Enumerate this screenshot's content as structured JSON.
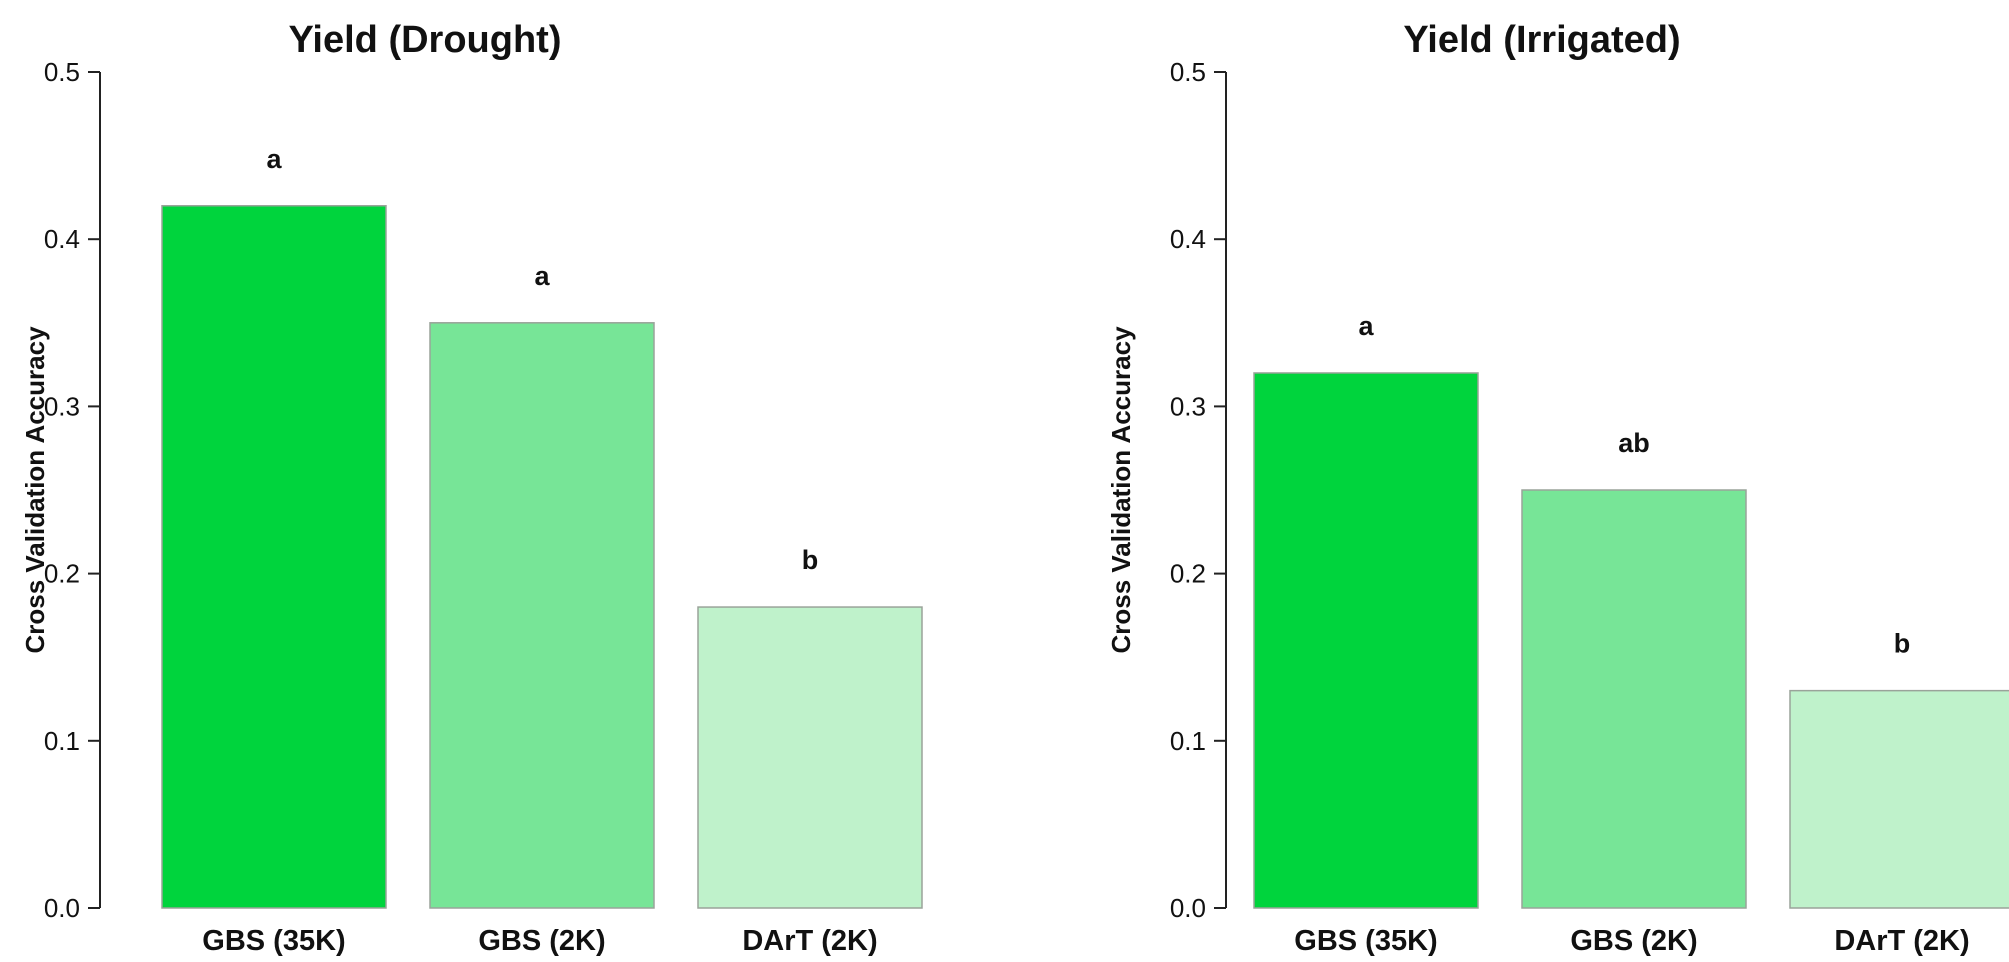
{
  "chart_data": [
    {
      "type": "bar",
      "title": "Yield (Drought)",
      "xlabel": "",
      "ylabel": "Cross Validation Accuracy",
      "ylim": [
        0,
        0.5
      ],
      "yticks": [
        "0.0",
        "0.1",
        "0.2",
        "0.3",
        "0.4",
        "0.5"
      ],
      "categories": [
        "GBS (35K)",
        "GBS (2K)",
        "DArT (2K)"
      ],
      "values": [
        0.42,
        0.35,
        0.18
      ],
      "annotations": [
        "a",
        "a",
        "b"
      ],
      "colors": [
        "#00d43d",
        "#77e597",
        "#bff2cb"
      ],
      "grid": false
    },
    {
      "type": "bar",
      "title": "Yield (Irrigated)",
      "xlabel": "",
      "ylabel": "Cross Validation Accuracy",
      "ylim": [
        0,
        0.5
      ],
      "yticks": [
        "0.0",
        "0.1",
        "0.2",
        "0.3",
        "0.4",
        "0.5"
      ],
      "categories": [
        "GBS (35K)",
        "GBS (2K)",
        "DArT (2K)"
      ],
      "values": [
        0.32,
        0.25,
        0.13
      ],
      "annotations": [
        "a",
        "ab",
        "b"
      ],
      "colors": [
        "#00d43d",
        "#77e597",
        "#bff2cb"
      ],
      "grid": false
    }
  ]
}
